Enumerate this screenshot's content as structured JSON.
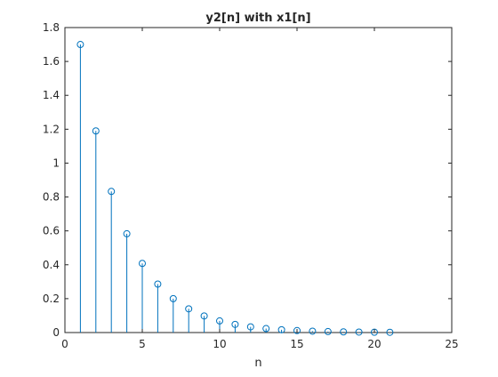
{
  "chart_data": {
    "type": "stem",
    "title": "y2[n] with x1[n]",
    "xlabel": "n",
    "ylabel": "",
    "xlim": [
      0,
      25
    ],
    "ylim": [
      0,
      1.8
    ],
    "xticks": [
      0,
      5,
      10,
      15,
      20,
      25
    ],
    "yticks": [
      0,
      0.2,
      0.4,
      0.6,
      0.8,
      1,
      1.2,
      1.4,
      1.6,
      1.8
    ],
    "xtick_labels": [
      "0",
      "5",
      "10",
      "15",
      "20",
      "25"
    ],
    "ytick_labels": [
      "0",
      "0.2",
      "0.4",
      "0.6",
      "0.8",
      "1",
      "1.2",
      "1.4",
      "1.6",
      "1.8"
    ],
    "grid": false,
    "color": "#0072bd",
    "marker": "circle-open",
    "x": [
      1,
      2,
      3,
      4,
      5,
      6,
      7,
      8,
      9,
      10,
      11,
      12,
      13,
      14,
      15,
      16,
      17,
      18,
      19,
      20,
      21
    ],
    "y": [
      1.7,
      1.19,
      0.833,
      0.583,
      0.408,
      0.286,
      0.2,
      0.14,
      0.098,
      0.0686,
      0.048,
      0.0336,
      0.0235,
      0.0165,
      0.0115,
      0.0081,
      0.0056,
      0.004,
      0.0028,
      0.0019,
      0.0014
    ]
  }
}
